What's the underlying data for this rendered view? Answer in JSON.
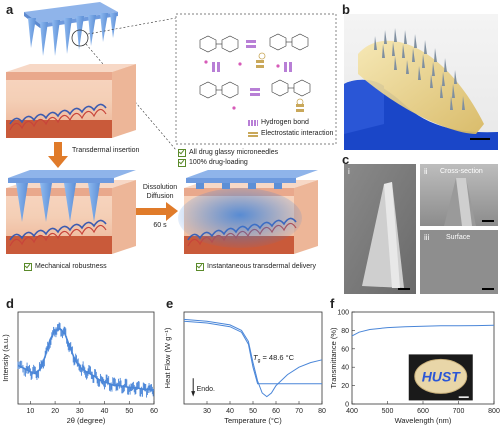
{
  "panels": {
    "a": "a",
    "b": "b",
    "c": "c",
    "d": "d",
    "e": "e",
    "f": "f"
  },
  "panel_a": {
    "transdermal_insertion": "Transdermal insertion",
    "dissolution": "Dissolution",
    "diffusion": "Diffusion",
    "time": "60 s",
    "legend_hbond": "Hydrogen bond",
    "legend_electrostatic": "Electrostatic interaction",
    "check_1": "All drug glassy microneedles",
    "check_2": "100% drug-loading",
    "check_3": "Mechanical robustness",
    "check_4": "Instantaneous transdermal delivery",
    "colors": {
      "needle": "#6fa3e0",
      "skin_top": "#f3c7ae",
      "dermis": "#f6dcc6",
      "fat": "#c95a3a",
      "vessel_red": "#c8443a",
      "vessel_blue": "#3b5bb0",
      "diffusion": "#4a86d8",
      "arrow": "#e07b2a",
      "hbond": "#b87fd6",
      "electro": "#c9a85a"
    }
  },
  "panel_c": {
    "i": "i",
    "ii": "ii",
    "iii": "iii",
    "cross_section": "Cross-section",
    "surface": "Surface"
  },
  "panel_d": {
    "chart_data": {
      "type": "line",
      "xlabel": "2θ (degree)",
      "ylabel": "Intensity (a.u.)",
      "xlim": [
        5,
        60
      ],
      "xticks": [
        10,
        20,
        30,
        40,
        50,
        60
      ],
      "series": [
        {
          "x": [
            5,
            8,
            10,
            12,
            14,
            16,
            18,
            20,
            22,
            24,
            26,
            28,
            30,
            32,
            34,
            36,
            38,
            40,
            42,
            44,
            46,
            48,
            50,
            52,
            54,
            56,
            58,
            60
          ],
          "y": [
            0.42,
            0.38,
            0.35,
            0.33,
            0.38,
            0.52,
            0.7,
            0.8,
            0.82,
            0.76,
            0.62,
            0.48,
            0.4,
            0.36,
            0.33,
            0.3,
            0.26,
            0.24,
            0.22,
            0.2,
            0.2,
            0.19,
            0.18,
            0.18,
            0.17,
            0.16,
            0.16,
            0.15
          ]
        }
      ],
      "color": "#4a86d8"
    }
  },
  "panel_e": {
    "chart_data": {
      "type": "line",
      "xlabel": "Temperature (°C)",
      "ylabel": "Heat Flow (W g⁻¹)",
      "xlim": [
        20,
        80
      ],
      "xticks": [
        30,
        40,
        50,
        60,
        70,
        80
      ],
      "annotation_tg": "48.6 °C",
      "annotation_tg_symbol": "T",
      "annotation_tg_sub": "g",
      "endo_label": "Endo.",
      "series": [
        {
          "x": [
            20,
            30,
            40,
            45,
            48,
            50,
            52,
            55,
            60,
            65,
            70,
            75,
            80
          ],
          "y": [
            0.9,
            0.88,
            0.84,
            0.78,
            0.65,
            0.4,
            0.22,
            0.22,
            0.22,
            0.22,
            0.22,
            0.22,
            0.22
          ]
        },
        {
          "x": [
            20,
            30,
            40,
            45,
            48,
            50,
            52,
            54,
            56,
            58,
            60,
            65,
            70,
            75,
            80
          ],
          "y": [
            0.92,
            0.9,
            0.86,
            0.8,
            0.68,
            0.45,
            0.25,
            0.12,
            0.08,
            0.12,
            0.2,
            0.32,
            0.4,
            0.45,
            0.48
          ]
        }
      ],
      "color": "#4a86d8"
    }
  },
  "panel_f": {
    "chart_data": {
      "type": "line",
      "xlabel": "Wavelength (nm)",
      "ylabel": "Transmittance (%)",
      "xlim": [
        400,
        800
      ],
      "ylim": [
        0,
        100
      ],
      "xticks": [
        400,
        500,
        600,
        700,
        800
      ],
      "yticks": [
        0,
        20,
        40,
        60,
        80,
        100
      ],
      "series": [
        {
          "x": [
            400,
            420,
            450,
            500,
            550,
            600,
            650,
            700,
            750,
            800
          ],
          "y": [
            74,
            78,
            81,
            83,
            84,
            84.5,
            85,
            85,
            85.2,
            85.5
          ]
        }
      ],
      "color": "#4a86d8"
    },
    "inset_logo": "HUST"
  }
}
